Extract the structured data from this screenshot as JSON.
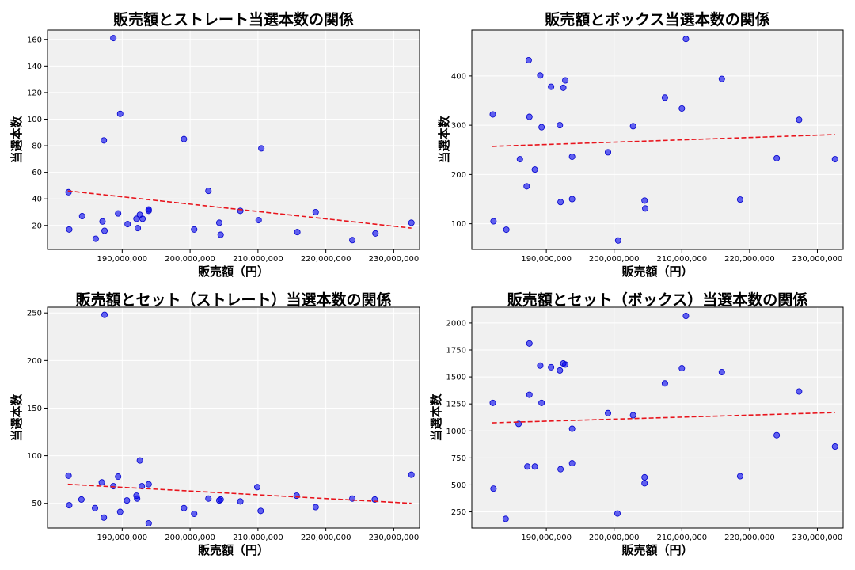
{
  "chart_data": [
    {
      "type": "scatter",
      "title": "販売額とストレート当選本数の関係",
      "xlabel": "販売額（円）",
      "ylabel": "当選本数",
      "xlim": [
        179000000,
        233800000
      ],
      "ylim": [
        2,
        167
      ],
      "xticks": [
        190000000,
        200000000,
        210000000,
        220000000,
        230000000
      ],
      "xtick_labels": [
        "190,000,000",
        "200,000,000",
        "210,000,000",
        "220,000,000",
        "230,000,000"
      ],
      "yticks": [
        20,
        40,
        60,
        80,
        100,
        120,
        140,
        160
      ],
      "ytick_labels": [
        "20",
        "40",
        "60",
        "80",
        "100",
        "120",
        "140",
        "160"
      ],
      "grid": true,
      "points": [
        {
          "x": 182100000,
          "y": 45
        },
        {
          "x": 182200000,
          "y": 17
        },
        {
          "x": 184100000,
          "y": 27
        },
        {
          "x": 186100000,
          "y": 10
        },
        {
          "x": 187100000,
          "y": 23
        },
        {
          "x": 187400000,
          "y": 16
        },
        {
          "x": 187300000,
          "y": 84
        },
        {
          "x": 188700000,
          "y": 161
        },
        {
          "x": 189400000,
          "y": 29
        },
        {
          "x": 189700000,
          "y": 104
        },
        {
          "x": 190800000,
          "y": 21
        },
        {
          "x": 192100000,
          "y": 25
        },
        {
          "x": 192300000,
          "y": 18
        },
        {
          "x": 192600000,
          "y": 28
        },
        {
          "x": 193000000,
          "y": 25
        },
        {
          "x": 193900000,
          "y": 31
        },
        {
          "x": 193900000,
          "y": 32
        },
        {
          "x": 199100000,
          "y": 85
        },
        {
          "x": 200600000,
          "y": 17
        },
        {
          "x": 202700000,
          "y": 46
        },
        {
          "x": 204300000,
          "y": 22
        },
        {
          "x": 204500000,
          "y": 13
        },
        {
          "x": 207400000,
          "y": 31
        },
        {
          "x": 210100000,
          "y": 24
        },
        {
          "x": 210500000,
          "y": 78
        },
        {
          "x": 215800000,
          "y": 15
        },
        {
          "x": 218500000,
          "y": 30
        },
        {
          "x": 223900000,
          "y": 9
        },
        {
          "x": 227300000,
          "y": 14
        },
        {
          "x": 232600000,
          "y": 22
        }
      ],
      "trendline": {
        "x": [
          182000000,
          232600000
        ],
        "y": [
          46,
          18
        ]
      }
    },
    {
      "type": "scatter",
      "title": "販売額とボックス当選本数の関係",
      "xlabel": "販売額（円）",
      "ylabel": "当選本数",
      "xlim": [
        179000000,
        233800000
      ],
      "ylim": [
        48,
        493
      ],
      "xticks": [
        190000000,
        200000000,
        210000000,
        220000000,
        230000000
      ],
      "xtick_labels": [
        "190,000,000",
        "200,000,000",
        "210,000,000",
        "220,000,000",
        "230,000,000"
      ],
      "yticks": [
        100,
        200,
        300,
        400
      ],
      "ytick_labels": [
        "100",
        "200",
        "300",
        "400"
      ],
      "grid": true,
      "points": [
        {
          "x": 182100000,
          "y": 322
        },
        {
          "x": 182200000,
          "y": 105
        },
        {
          "x": 184100000,
          "y": 88
        },
        {
          "x": 186100000,
          "y": 231
        },
        {
          "x": 187100000,
          "y": 176
        },
        {
          "x": 187400000,
          "y": 432
        },
        {
          "x": 187500000,
          "y": 317
        },
        {
          "x": 188300000,
          "y": 210
        },
        {
          "x": 189100000,
          "y": 401
        },
        {
          "x": 189300000,
          "y": 296
        },
        {
          "x": 190700000,
          "y": 378
        },
        {
          "x": 192000000,
          "y": 300
        },
        {
          "x": 192100000,
          "y": 144
        },
        {
          "x": 192500000,
          "y": 376
        },
        {
          "x": 192800000,
          "y": 391
        },
        {
          "x": 193800000,
          "y": 236
        },
        {
          "x": 193800000,
          "y": 150
        },
        {
          "x": 199100000,
          "y": 245
        },
        {
          "x": 200600000,
          "y": 66
        },
        {
          "x": 202800000,
          "y": 298
        },
        {
          "x": 204500000,
          "y": 147
        },
        {
          "x": 204600000,
          "y": 131
        },
        {
          "x": 207500000,
          "y": 356
        },
        {
          "x": 210000000,
          "y": 334
        },
        {
          "x": 210600000,
          "y": 475
        },
        {
          "x": 215900000,
          "y": 394
        },
        {
          "x": 218600000,
          "y": 149
        },
        {
          "x": 224000000,
          "y": 233
        },
        {
          "x": 227300000,
          "y": 311
        },
        {
          "x": 232600000,
          "y": 231
        }
      ],
      "trendline": {
        "x": [
          182000000,
          232600000
        ],
        "y": [
          257,
          281
        ]
      }
    },
    {
      "type": "scatter",
      "title": "販売額とセット（ストレート）当選本数の関係",
      "xlabel": "販売額（円）",
      "ylabel": "当選本数",
      "xlim": [
        179000000,
        233800000
      ],
      "ylim": [
        24,
        256
      ],
      "xticks": [
        190000000,
        200000000,
        210000000,
        220000000,
        230000000
      ],
      "xtick_labels": [
        "190,000,000",
        "200,000,000",
        "210,000,000",
        "220,000,000",
        "230,000,000"
      ],
      "yticks": [
        50,
        100,
        150,
        200,
        250
      ],
      "ytick_labels": [
        "50",
        "100",
        "150",
        "200",
        "250"
      ],
      "grid": true,
      "points": [
        {
          "x": 182100000,
          "y": 79
        },
        {
          "x": 182200000,
          "y": 48
        },
        {
          "x": 184000000,
          "y": 54
        },
        {
          "x": 186000000,
          "y": 45
        },
        {
          "x": 187000000,
          "y": 72
        },
        {
          "x": 187300000,
          "y": 35
        },
        {
          "x": 187400000,
          "y": 248
        },
        {
          "x": 188700000,
          "y": 68
        },
        {
          "x": 189400000,
          "y": 78
        },
        {
          "x": 189700000,
          "y": 41
        },
        {
          "x": 190700000,
          "y": 53
        },
        {
          "x": 192100000,
          "y": 58
        },
        {
          "x": 192200000,
          "y": 55
        },
        {
          "x": 192600000,
          "y": 95
        },
        {
          "x": 192900000,
          "y": 68
        },
        {
          "x": 193900000,
          "y": 70
        },
        {
          "x": 193900000,
          "y": 29
        },
        {
          "x": 199100000,
          "y": 45
        },
        {
          "x": 200600000,
          "y": 39
        },
        {
          "x": 202700000,
          "y": 55
        },
        {
          "x": 204300000,
          "y": 53
        },
        {
          "x": 204500000,
          "y": 54
        },
        {
          "x": 207400000,
          "y": 52
        },
        {
          "x": 209900000,
          "y": 67
        },
        {
          "x": 210400000,
          "y": 42
        },
        {
          "x": 215700000,
          "y": 58
        },
        {
          "x": 218500000,
          "y": 46
        },
        {
          "x": 223900000,
          "y": 55
        },
        {
          "x": 227200000,
          "y": 54
        },
        {
          "x": 232600000,
          "y": 80
        }
      ],
      "trendline": {
        "x": [
          182000000,
          232600000
        ],
        "y": [
          70,
          50
        ]
      }
    },
    {
      "type": "scatter",
      "title": "販売額とセット（ボックス）当選本数の関係",
      "xlabel": "販売額（円）",
      "ylabel": "当選本数",
      "xlim": [
        179000000,
        233800000
      ],
      "ylim": [
        100,
        2146
      ],
      "xticks": [
        190000000,
        200000000,
        210000000,
        220000000,
        230000000
      ],
      "xtick_labels": [
        "190,000,000",
        "200,000,000",
        "210,000,000",
        "220,000,000",
        "230,000,000"
      ],
      "yticks": [
        250,
        500,
        750,
        1000,
        1250,
        1500,
        1750,
        2000
      ],
      "ytick_labels": [
        "250",
        "500",
        "750",
        "1000",
        "1250",
        "1500",
        "1750",
        "2000"
      ],
      "grid": true,
      "points": [
        {
          "x": 182100000,
          "y": 1260
        },
        {
          "x": 182200000,
          "y": 465
        },
        {
          "x": 184000000,
          "y": 185
        },
        {
          "x": 185900000,
          "y": 1065
        },
        {
          "x": 187200000,
          "y": 670
        },
        {
          "x": 187500000,
          "y": 1810
        },
        {
          "x": 187500000,
          "y": 1335
        },
        {
          "x": 188300000,
          "y": 670
        },
        {
          "x": 189100000,
          "y": 1605
        },
        {
          "x": 189300000,
          "y": 1260
        },
        {
          "x": 190700000,
          "y": 1590
        },
        {
          "x": 192000000,
          "y": 1560
        },
        {
          "x": 192100000,
          "y": 645
        },
        {
          "x": 192500000,
          "y": 1625
        },
        {
          "x": 192800000,
          "y": 1615
        },
        {
          "x": 193800000,
          "y": 1020
        },
        {
          "x": 193800000,
          "y": 700
        },
        {
          "x": 199100000,
          "y": 1165
        },
        {
          "x": 200500000,
          "y": 235
        },
        {
          "x": 202800000,
          "y": 1145
        },
        {
          "x": 204500000,
          "y": 570
        },
        {
          "x": 204500000,
          "y": 515
        },
        {
          "x": 207500000,
          "y": 1440
        },
        {
          "x": 210000000,
          "y": 1580
        },
        {
          "x": 210600000,
          "y": 2065
        },
        {
          "x": 215900000,
          "y": 1545
        },
        {
          "x": 218600000,
          "y": 580
        },
        {
          "x": 224000000,
          "y": 960
        },
        {
          "x": 227300000,
          "y": 1365
        },
        {
          "x": 232600000,
          "y": 855
        }
      ],
      "trendline": {
        "x": [
          182000000,
          232600000
        ],
        "y": [
          1075,
          1170
        ]
      }
    }
  ]
}
